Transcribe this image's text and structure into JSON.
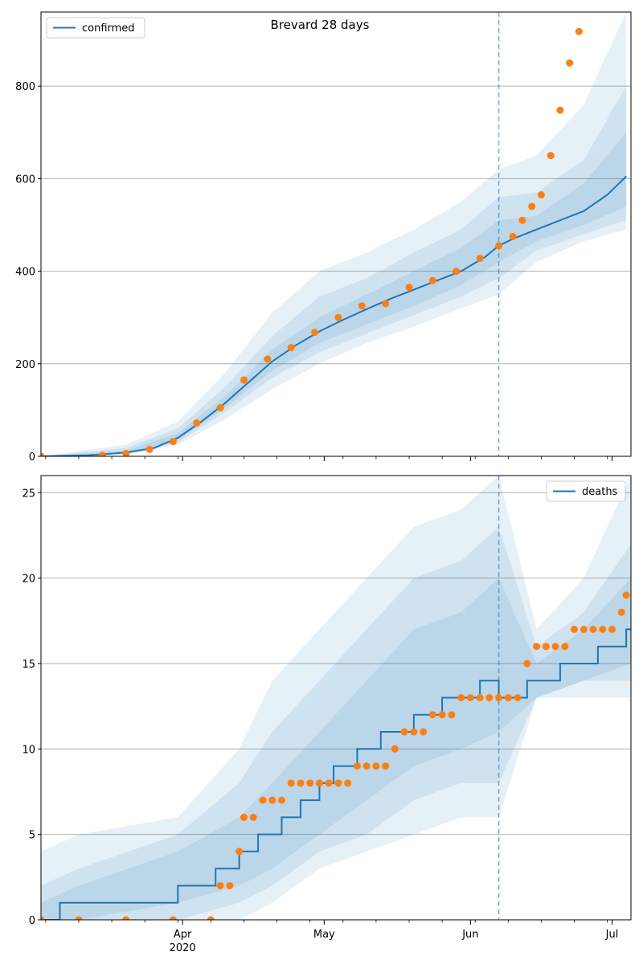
{
  "colors": {
    "line": "#1f77b4",
    "observed": "#ff7f0e",
    "band": "#1f77b4",
    "grid": "#b0b0b0",
    "vline": "#1f77b4"
  },
  "chart_data": [
    {
      "type": "line",
      "title": "Brevard 28 days",
      "xlabel": "",
      "ylabel": "",
      "ylim": [
        0,
        960
      ],
      "yticks": [
        0,
        200,
        400,
        600,
        800
      ],
      "grid": "horizontal",
      "legend": {
        "position": "top-left",
        "entries": [
          "confirmed"
        ]
      },
      "forecast_start": "2020-06-07",
      "series": [
        {
          "name": "confirmed",
          "kind": "model-median",
          "x": [
            "2020-03-02",
            "2020-03-12",
            "2020-03-20",
            "2020-03-26",
            "2020-03-31",
            "2020-04-05",
            "2020-04-10",
            "2020-04-15",
            "2020-04-20",
            "2020-04-25",
            "2020-04-30",
            "2020-05-05",
            "2020-05-10",
            "2020-05-15",
            "2020-05-20",
            "2020-05-25",
            "2020-05-30",
            "2020-06-04",
            "2020-06-07",
            "2020-06-10",
            "2020-06-15",
            "2020-06-20",
            "2020-06-25",
            "2020-06-30",
            "2020-07-04"
          ],
          "values": [
            0,
            2,
            8,
            18,
            40,
            75,
            115,
            160,
            205,
            240,
            270,
            295,
            318,
            340,
            360,
            380,
            400,
            430,
            455,
            470,
            490,
            510,
            530,
            565,
            605
          ]
        },
        {
          "name": "observed",
          "kind": "points",
          "x": [
            "2020-03-02",
            "2020-03-15",
            "2020-03-20",
            "2020-03-25",
            "2020-03-30",
            "2020-04-04",
            "2020-04-09",
            "2020-04-14",
            "2020-04-19",
            "2020-04-24",
            "2020-04-29",
            "2020-05-04",
            "2020-05-09",
            "2020-05-14",
            "2020-05-19",
            "2020-05-24",
            "2020-05-29",
            "2020-06-03",
            "2020-06-07",
            "2020-06-10",
            "2020-06-12",
            "2020-06-14",
            "2020-06-16",
            "2020-06-18",
            "2020-06-20",
            "2020-06-22",
            "2020-06-24"
          ],
          "values": [
            0,
            2,
            6,
            15,
            32,
            72,
            105,
            165,
            210,
            235,
            268,
            300,
            325,
            330,
            365,
            380,
            400,
            428,
            455,
            475,
            510,
            540,
            565,
            650,
            748,
            850,
            918
          ]
        }
      ],
      "bands": [
        {
          "level": "outer",
          "x": [
            "2020-03-02",
            "2020-03-20",
            "2020-03-31",
            "2020-04-10",
            "2020-04-20",
            "2020-04-30",
            "2020-05-10",
            "2020-05-20",
            "2020-05-30",
            "2020-06-07",
            "2020-06-15",
            "2020-06-25",
            "2020-07-04"
          ],
          "low": [
            0,
            3,
            25,
            80,
            145,
            200,
            245,
            280,
            320,
            350,
            420,
            465,
            490
          ],
          "high": [
            0,
            25,
            75,
            180,
            310,
            400,
            440,
            490,
            550,
            620,
            650,
            760,
            960
          ]
        },
        {
          "level": "middle",
          "x": [
            "2020-03-02",
            "2020-03-20",
            "2020-03-31",
            "2020-04-10",
            "2020-04-20",
            "2020-04-30",
            "2020-05-10",
            "2020-05-20",
            "2020-05-30",
            "2020-06-07",
            "2020-06-15",
            "2020-06-25",
            "2020-07-04"
          ],
          "low": [
            0,
            5,
            30,
            95,
            170,
            225,
            265,
            305,
            345,
            385,
            445,
            480,
            510
          ],
          "high": [
            0,
            18,
            60,
            150,
            260,
            345,
            385,
            440,
            490,
            560,
            570,
            640,
            800
          ]
        },
        {
          "level": "inner",
          "x": [
            "2020-03-02",
            "2020-03-20",
            "2020-03-31",
            "2020-04-10",
            "2020-04-20",
            "2020-04-30",
            "2020-05-10",
            "2020-05-20",
            "2020-05-30",
            "2020-06-07",
            "2020-06-15",
            "2020-06-25",
            "2020-07-04"
          ],
          "low": [
            0,
            6,
            35,
            105,
            185,
            245,
            285,
            325,
            370,
            420,
            465,
            500,
            540
          ],
          "high": [
            0,
            12,
            50,
            130,
            230,
            300,
            350,
            400,
            450,
            510,
            520,
            590,
            700
          ]
        }
      ]
    },
    {
      "type": "line",
      "title": "",
      "xlabel": "",
      "ylabel": "",
      "ylim": [
        0,
        26
      ],
      "yticks": [
        0,
        5,
        10,
        15,
        20,
        25
      ],
      "grid": "horizontal",
      "legend": {
        "position": "top-right",
        "entries": [
          "deaths"
        ]
      },
      "forecast_start": "2020-06-07",
      "xtick_labels": [
        "Apr",
        "May",
        "Jun",
        "Jul"
      ],
      "xtick_dates": [
        "2020-04-01",
        "2020-05-01",
        "2020-06-01",
        "2020-07-01"
      ],
      "year_label": "2020",
      "xlim": [
        "2020-03-02",
        "2020-07-05"
      ],
      "series": [
        {
          "name": "deaths",
          "kind": "model-median-step",
          "x": [
            "2020-03-02",
            "2020-03-06",
            "2020-03-31",
            "2020-04-08",
            "2020-04-13",
            "2020-04-17",
            "2020-04-22",
            "2020-04-26",
            "2020-04-30",
            "2020-05-03",
            "2020-05-08",
            "2020-05-13",
            "2020-05-20",
            "2020-05-26",
            "2020-06-03",
            "2020-06-07",
            "2020-06-13",
            "2020-06-20",
            "2020-06-28",
            "2020-07-04"
          ],
          "values": [
            0,
            1,
            2,
            3,
            4,
            5,
            6,
            7,
            8,
            9,
            10,
            11,
            12,
            13,
            14,
            13,
            14,
            15,
            16,
            17
          ]
        },
        {
          "name": "observed",
          "kind": "points",
          "x": [
            "2020-03-02",
            "2020-03-10",
            "2020-03-20",
            "2020-03-30",
            "2020-04-07",
            "2020-04-09",
            "2020-04-11",
            "2020-04-13",
            "2020-04-14",
            "2020-04-16",
            "2020-04-18",
            "2020-04-20",
            "2020-04-22",
            "2020-04-24",
            "2020-04-26",
            "2020-04-28",
            "2020-04-30",
            "2020-05-02",
            "2020-05-04",
            "2020-05-06",
            "2020-05-08",
            "2020-05-10",
            "2020-05-12",
            "2020-05-14",
            "2020-05-16",
            "2020-05-18",
            "2020-05-20",
            "2020-05-22",
            "2020-05-24",
            "2020-05-26",
            "2020-05-28",
            "2020-05-30",
            "2020-06-01",
            "2020-06-03",
            "2020-06-05",
            "2020-06-07",
            "2020-06-09",
            "2020-06-11",
            "2020-06-13",
            "2020-06-15",
            "2020-06-17",
            "2020-06-19",
            "2020-06-21",
            "2020-06-23",
            "2020-06-25",
            "2020-06-27",
            "2020-06-29",
            "2020-07-01",
            "2020-07-03",
            "2020-07-04"
          ],
          "values": [
            0,
            0,
            0,
            0,
            0,
            2,
            2,
            4,
            6,
            6,
            7,
            7,
            7,
            8,
            8,
            8,
            8,
            8,
            8,
            8,
            9,
            9,
            9,
            9,
            10,
            11,
            11,
            11,
            12,
            12,
            12,
            13,
            13,
            13,
            13,
            13,
            13,
            13,
            15,
            16,
            16,
            16,
            16,
            17,
            17,
            17,
            17,
            17,
            18,
            19
          ]
        }
      ],
      "bands": [
        {
          "level": "outer",
          "x": [
            "2020-03-02",
            "2020-03-10",
            "2020-03-31",
            "2020-04-13",
            "2020-04-20",
            "2020-04-30",
            "2020-05-10",
            "2020-05-20",
            "2020-05-30",
            "2020-06-07",
            "2020-06-15",
            "2020-06-25",
            "2020-07-05"
          ],
          "low": [
            0,
            0,
            0,
            0,
            1,
            3,
            4,
            5,
            6,
            6,
            13,
            13,
            13
          ],
          "high": [
            4,
            5,
            6,
            10,
            14,
            17,
            20,
            23,
            24,
            26,
            17,
            20,
            26
          ]
        },
        {
          "level": "middle",
          "x": [
            "2020-03-02",
            "2020-03-10",
            "2020-03-31",
            "2020-04-13",
            "2020-04-20",
            "2020-04-30",
            "2020-05-10",
            "2020-05-20",
            "2020-05-30",
            "2020-06-07",
            "2020-06-15",
            "2020-06-25",
            "2020-07-05"
          ],
          "low": [
            0,
            0,
            0,
            1,
            2,
            4,
            5,
            7,
            8,
            8,
            13,
            14,
            14
          ],
          "high": [
            2,
            3,
            5,
            8,
            11,
            14,
            17,
            20,
            21,
            23,
            16,
            18,
            22
          ]
        },
        {
          "level": "inner",
          "x": [
            "2020-03-02",
            "2020-03-10",
            "2020-03-31",
            "2020-04-13",
            "2020-04-20",
            "2020-04-30",
            "2020-05-10",
            "2020-05-20",
            "2020-05-30",
            "2020-06-07",
            "2020-06-15",
            "2020-06-25",
            "2020-07-05"
          ],
          "low": [
            0,
            0,
            1,
            2,
            3,
            5,
            7,
            9,
            10,
            11,
            13,
            14,
            15
          ],
          "high": [
            1,
            2,
            4,
            6,
            8,
            11,
            14,
            17,
            18,
            20,
            15,
            17,
            20
          ]
        }
      ]
    }
  ]
}
